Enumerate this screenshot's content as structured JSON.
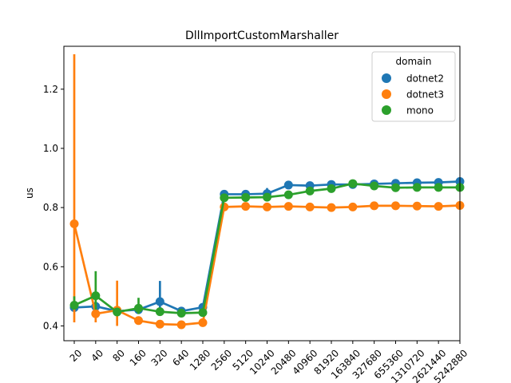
{
  "chart_data": {
    "type": "line",
    "title": "DllImportCustomMarshaller",
    "xlabel": "",
    "ylabel": "us",
    "categories": [
      "20",
      "40",
      "80",
      "160",
      "320",
      "640",
      "1280",
      "2560",
      "5120",
      "10240",
      "20480",
      "40960",
      "81920",
      "163840",
      "327680",
      "655360",
      "1310720",
      "2621440",
      "5242880"
    ],
    "ylim": [
      0.35,
      1.345
    ],
    "yticks": [
      0.4,
      0.6,
      0.8,
      1.0,
      1.2
    ],
    "ytick_labels": [
      "0.4",
      "0.6",
      "0.8",
      "1.0",
      "1.2"
    ],
    "grid": false,
    "legend": {
      "title": "domain",
      "placement": "top-right"
    },
    "series": [
      {
        "name": "dotnet2",
        "color": "#1f77b4",
        "values": [
          0.462,
          0.466,
          0.45,
          0.455,
          0.482,
          0.45,
          0.463,
          0.845,
          0.845,
          0.847,
          0.876,
          0.874,
          0.878,
          0.878,
          0.88,
          0.882,
          0.884,
          0.885,
          0.888
        ],
        "err_low": [
          0.455,
          0.455,
          0.44,
          0.445,
          0.455,
          0.44,
          0.45,
          0.835,
          0.838,
          0.838,
          0.866,
          0.866,
          0.87,
          0.87,
          0.872,
          0.874,
          0.876,
          0.877,
          0.88
        ],
        "err_high": [
          0.47,
          0.478,
          0.46,
          0.466,
          0.552,
          0.458,
          0.475,
          0.855,
          0.852,
          0.866,
          0.886,
          0.882,
          0.886,
          0.886,
          0.888,
          0.89,
          0.892,
          0.893,
          0.896
        ]
      },
      {
        "name": "dotnet3",
        "color": "#ff7f0e",
        "values": [
          0.745,
          0.441,
          0.453,
          0.418,
          0.406,
          0.404,
          0.411,
          0.802,
          0.804,
          0.802,
          0.804,
          0.802,
          0.8,
          0.802,
          0.806,
          0.806,
          0.805,
          0.804,
          0.807
        ],
        "err_low": [
          0.412,
          0.412,
          0.4,
          0.41,
          0.398,
          0.398,
          0.403,
          0.795,
          0.797,
          0.795,
          0.797,
          0.795,
          0.793,
          0.795,
          0.799,
          0.799,
          0.798,
          0.797,
          0.8
        ],
        "err_high": [
          1.318,
          0.47,
          0.553,
          0.428,
          0.414,
          0.41,
          0.421,
          0.81,
          0.812,
          0.81,
          0.812,
          0.81,
          0.807,
          0.81,
          0.813,
          0.813,
          0.812,
          0.811,
          0.814
        ]
      },
      {
        "name": "mono",
        "color": "#2ca02c",
        "values": [
          0.47,
          0.502,
          0.447,
          0.46,
          0.448,
          0.443,
          0.445,
          0.833,
          0.834,
          0.835,
          0.843,
          0.856,
          0.864,
          0.881,
          0.873,
          0.867,
          0.868,
          0.868,
          0.868
        ],
        "err_low": [
          0.455,
          0.455,
          0.438,
          0.44,
          0.44,
          0.436,
          0.436,
          0.823,
          0.825,
          0.826,
          0.834,
          0.846,
          0.855,
          0.872,
          0.864,
          0.859,
          0.86,
          0.86,
          0.86
        ],
        "err_high": [
          0.5,
          0.585,
          0.457,
          0.495,
          0.457,
          0.452,
          0.455,
          0.842,
          0.843,
          0.844,
          0.852,
          0.865,
          0.873,
          0.89,
          0.882,
          0.876,
          0.876,
          0.876,
          0.876
        ]
      }
    ]
  }
}
